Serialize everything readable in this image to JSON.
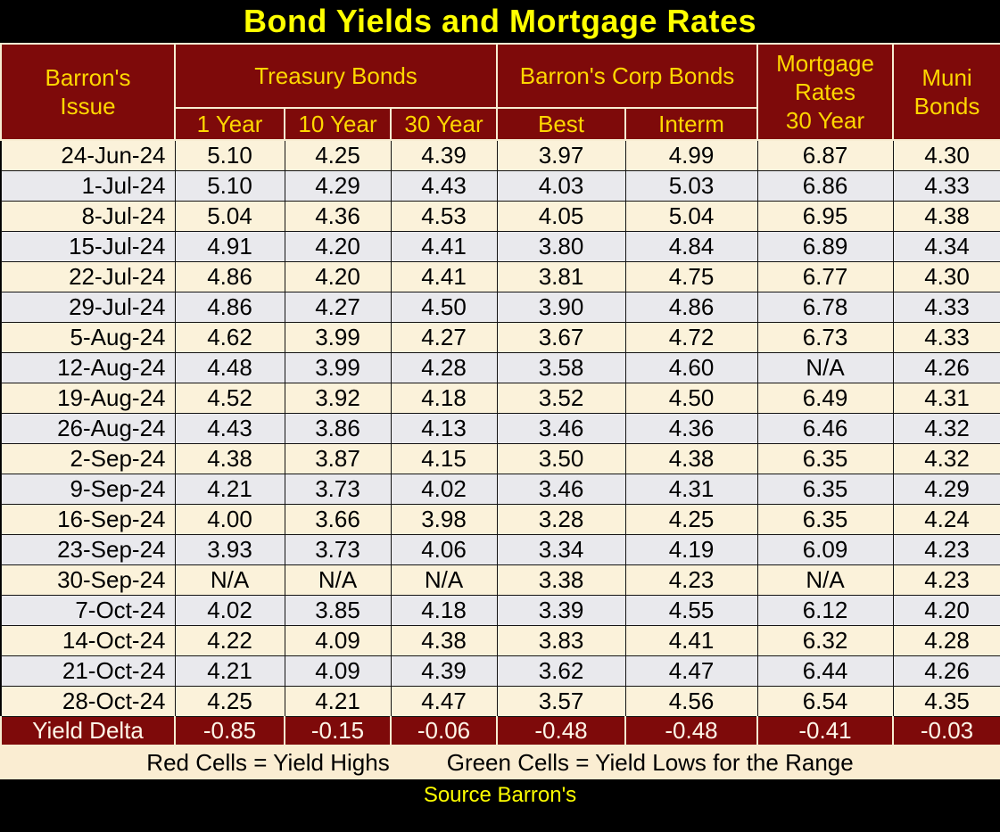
{
  "title": "Bond Yields and Mortgage Rates",
  "header": {
    "issue": "Barron's\nIssue",
    "treasury_group": "Treasury Bonds",
    "treasury_cols": [
      "1 Year",
      "10 Year",
      "30 Year"
    ],
    "corp_group": "Barron's Corp Bonds",
    "corp_cols": [
      "Best",
      "Interm"
    ],
    "mortgage": "Mortgage\nRates\n30 Year",
    "muni": "Muni\nBonds"
  },
  "rows": [
    {
      "date": "24-Jun-24",
      "values": [
        "5.10",
        "4.25",
        "4.39",
        "3.97",
        "4.99",
        "6.87",
        "4.30"
      ],
      "hl": [
        "red",
        "",
        "",
        "",
        "",
        "",
        ""
      ]
    },
    {
      "date": "1-Jul-24",
      "values": [
        "5.10",
        "4.29",
        "4.43",
        "4.03",
        "5.03",
        "6.86",
        "4.33"
      ],
      "hl": [
        "",
        "",
        "",
        "",
        "",
        "",
        ""
      ]
    },
    {
      "date": "8-Jul-24",
      "values": [
        "5.04",
        "4.36",
        "4.53",
        "4.05",
        "5.04",
        "6.95",
        "4.38"
      ],
      "hl": [
        "",
        "red",
        "red",
        "red",
        "red",
        "red",
        "red"
      ]
    },
    {
      "date": "15-Jul-24",
      "values": [
        "4.91",
        "4.20",
        "4.41",
        "3.80",
        "4.84",
        "6.89",
        "4.34"
      ],
      "hl": [
        "",
        "",
        "",
        "",
        "",
        "",
        ""
      ]
    },
    {
      "date": "22-Jul-24",
      "values": [
        "4.86",
        "4.20",
        "4.41",
        "3.81",
        "4.75",
        "6.77",
        "4.30"
      ],
      "hl": [
        "",
        "",
        "",
        "",
        "",
        "",
        ""
      ]
    },
    {
      "date": "29-Jul-24",
      "values": [
        "4.86",
        "4.27",
        "4.50",
        "3.90",
        "4.86",
        "6.78",
        "4.33"
      ],
      "hl": [
        "",
        "",
        "",
        "",
        "",
        "",
        ""
      ]
    },
    {
      "date": "5-Aug-24",
      "values": [
        "4.62",
        "3.99",
        "4.27",
        "3.67",
        "4.72",
        "6.73",
        "4.33"
      ],
      "hl": [
        "",
        "",
        "",
        "",
        "",
        "",
        ""
      ]
    },
    {
      "date": "12-Aug-24",
      "values": [
        "4.48",
        "3.99",
        "4.28",
        "3.58",
        "4.60",
        "N/A",
        "4.26"
      ],
      "hl": [
        "",
        "",
        "",
        "",
        "",
        "",
        ""
      ]
    },
    {
      "date": "19-Aug-24",
      "values": [
        "4.52",
        "3.92",
        "4.18",
        "3.52",
        "4.50",
        "6.49",
        "4.31"
      ],
      "hl": [
        "",
        "",
        "",
        "",
        "",
        "",
        ""
      ]
    },
    {
      "date": "26-Aug-24",
      "values": [
        "4.43",
        "3.86",
        "4.13",
        "3.46",
        "4.36",
        "6.46",
        "4.32"
      ],
      "hl": [
        "",
        "",
        "",
        "",
        "",
        "",
        ""
      ]
    },
    {
      "date": "2-Sep-24",
      "values": [
        "4.38",
        "3.87",
        "4.15",
        "3.50",
        "4.38",
        "6.35",
        "4.32"
      ],
      "hl": [
        "",
        "",
        "",
        "",
        "",
        "",
        ""
      ]
    },
    {
      "date": "9-Sep-24",
      "values": [
        "4.21",
        "3.73",
        "4.02",
        "3.46",
        "4.31",
        "6.35",
        "4.29"
      ],
      "hl": [
        "",
        "",
        "",
        "",
        "",
        "",
        ""
      ]
    },
    {
      "date": "16-Sep-24",
      "values": [
        "4.00",
        "3.66",
        "3.98",
        "3.28",
        "4.25",
        "6.35",
        "4.24"
      ],
      "hl": [
        "",
        "green",
        "green",
        "green",
        "",
        "",
        ""
      ]
    },
    {
      "date": "23-Sep-24",
      "values": [
        "3.93",
        "3.73",
        "4.06",
        "3.34",
        "4.19",
        "6.09",
        "4.23"
      ],
      "hl": [
        "green",
        "",
        "",
        "",
        "green",
        "green",
        ""
      ]
    },
    {
      "date": "30-Sep-24",
      "values": [
        "N/A",
        "N/A",
        "N/A",
        "3.38",
        "4.23",
        "N/A",
        "4.23"
      ],
      "hl": [
        "",
        "",
        "",
        "",
        "",
        "",
        ""
      ]
    },
    {
      "date": "7-Oct-24",
      "values": [
        "4.02",
        "3.85",
        "4.18",
        "3.39",
        "4.55",
        "6.12",
        "4.20"
      ],
      "hl": [
        "",
        "",
        "",
        "",
        "",
        "",
        "green"
      ]
    },
    {
      "date": "14-Oct-24",
      "values": [
        "4.22",
        "4.09",
        "4.38",
        "3.83",
        "4.41",
        "6.32",
        "4.28"
      ],
      "hl": [
        "",
        "",
        "",
        "",
        "",
        "",
        ""
      ]
    },
    {
      "date": "21-Oct-24",
      "values": [
        "4.21",
        "4.09",
        "4.39",
        "3.62",
        "4.47",
        "6.44",
        "4.26"
      ],
      "hl": [
        "",
        "",
        "",
        "",
        "",
        "",
        ""
      ]
    },
    {
      "date": "28-Oct-24",
      "values": [
        "4.25",
        "4.21",
        "4.47",
        "3.57",
        "4.56",
        "6.54",
        "4.35"
      ],
      "hl": [
        "",
        "",
        "",
        "",
        "",
        "",
        ""
      ]
    }
  ],
  "yield_delta": {
    "label": "Yield Delta",
    "values": [
      "-0.85",
      "-0.15",
      "-0.06",
      "-0.48",
      "-0.48",
      "-0.41",
      "-0.03"
    ]
  },
  "legend": {
    "red_label": "Red Cells = Yield Highs",
    "green_label": "Green Cells = Yield Lows for the Range"
  },
  "source": "Source Barron's",
  "colors": {
    "maroon": "#7E0A0A",
    "title_yellow": "#FFFF00",
    "header_yellow": "#FFD700",
    "row_cream": "#FBF2DA",
    "row_gray": "#E9E9ED",
    "high_red": "#F4B183",
    "low_green": "#A9D08E",
    "delta_text": "#FFF6E8"
  },
  "chart_data": {
    "type": "table",
    "title": "Bond Yields and Mortgage Rates",
    "columns": [
      "Barron's Issue",
      "Treasury Bonds 1 Year",
      "Treasury Bonds 10 Year",
      "Treasury Bonds 30 Year",
      "Barron's Corp Bonds Best",
      "Barron's Corp Bonds Interm",
      "Mortgage Rates 30 Year",
      "Muni Bonds"
    ],
    "rows": [
      [
        "24-Jun-24",
        5.1,
        4.25,
        4.39,
        3.97,
        4.99,
        6.87,
        4.3
      ],
      [
        "1-Jul-24",
        5.1,
        4.29,
        4.43,
        4.03,
        5.03,
        6.86,
        4.33
      ],
      [
        "8-Jul-24",
        5.04,
        4.36,
        4.53,
        4.05,
        5.04,
        6.95,
        4.38
      ],
      [
        "15-Jul-24",
        4.91,
        4.2,
        4.41,
        3.8,
        4.84,
        6.89,
        4.34
      ],
      [
        "22-Jul-24",
        4.86,
        4.2,
        4.41,
        3.81,
        4.75,
        6.77,
        4.3
      ],
      [
        "29-Jul-24",
        4.86,
        4.27,
        4.5,
        3.9,
        4.86,
        6.78,
        4.33
      ],
      [
        "5-Aug-24",
        4.62,
        3.99,
        4.27,
        3.67,
        4.72,
        6.73,
        4.33
      ],
      [
        "12-Aug-24",
        4.48,
        3.99,
        4.28,
        3.58,
        4.6,
        "N/A",
        4.26
      ],
      [
        "19-Aug-24",
        4.52,
        3.92,
        4.18,
        3.52,
        4.5,
        6.49,
        4.31
      ],
      [
        "26-Aug-24",
        4.43,
        3.86,
        4.13,
        3.46,
        4.36,
        6.46,
        4.32
      ],
      [
        "2-Sep-24",
        4.38,
        3.87,
        4.15,
        3.5,
        4.38,
        6.35,
        4.32
      ],
      [
        "9-Sep-24",
        4.21,
        3.73,
        4.02,
        3.46,
        4.31,
        6.35,
        4.29
      ],
      [
        "16-Sep-24",
        4.0,
        3.66,
        3.98,
        3.28,
        4.25,
        6.35,
        4.24
      ],
      [
        "23-Sep-24",
        3.93,
        3.73,
        4.06,
        3.34,
        4.19,
        6.09,
        4.23
      ],
      [
        "30-Sep-24",
        "N/A",
        "N/A",
        "N/A",
        3.38,
        4.23,
        "N/A",
        4.23
      ],
      [
        "7-Oct-24",
        4.02,
        3.85,
        4.18,
        3.39,
        4.55,
        6.12,
        4.2
      ],
      [
        "14-Oct-24",
        4.22,
        4.09,
        4.38,
        3.83,
        4.41,
        6.32,
        4.28
      ],
      [
        "21-Oct-24",
        4.21,
        4.09,
        4.39,
        3.62,
        4.47,
        6.44,
        4.26
      ],
      [
        "28-Oct-24",
        4.25,
        4.21,
        4.47,
        3.57,
        4.56,
        6.54,
        4.35
      ],
      [
        "Yield Delta",
        -0.85,
        -0.15,
        -0.06,
        -0.48,
        -0.48,
        -0.41,
        -0.03
      ]
    ],
    "highlights": {
      "red_meaning": "Yield Highs",
      "green_meaning": "Yield Lows for the Range",
      "red_cells": [
        [
          "24-Jun-24",
          "Treasury 1 Year"
        ],
        [
          "8-Jul-24",
          "Treasury 10 Year"
        ],
        [
          "8-Jul-24",
          "Treasury 30 Year"
        ],
        [
          "8-Jul-24",
          "Corp Best"
        ],
        [
          "8-Jul-24",
          "Corp Interm"
        ],
        [
          "8-Jul-24",
          "Mortgage 30 Year"
        ],
        [
          "8-Jul-24",
          "Muni Bonds"
        ]
      ],
      "green_cells": [
        [
          "16-Sep-24",
          "Treasury 10 Year"
        ],
        [
          "16-Sep-24",
          "Treasury 30 Year"
        ],
        [
          "16-Sep-24",
          "Corp Best"
        ],
        [
          "23-Sep-24",
          "Treasury 1 Year"
        ],
        [
          "23-Sep-24",
          "Corp Interm"
        ],
        [
          "23-Sep-24",
          "Mortgage 30 Year"
        ],
        [
          "7-Oct-24",
          "Muni Bonds"
        ]
      ]
    },
    "source": "Source Barron's"
  }
}
